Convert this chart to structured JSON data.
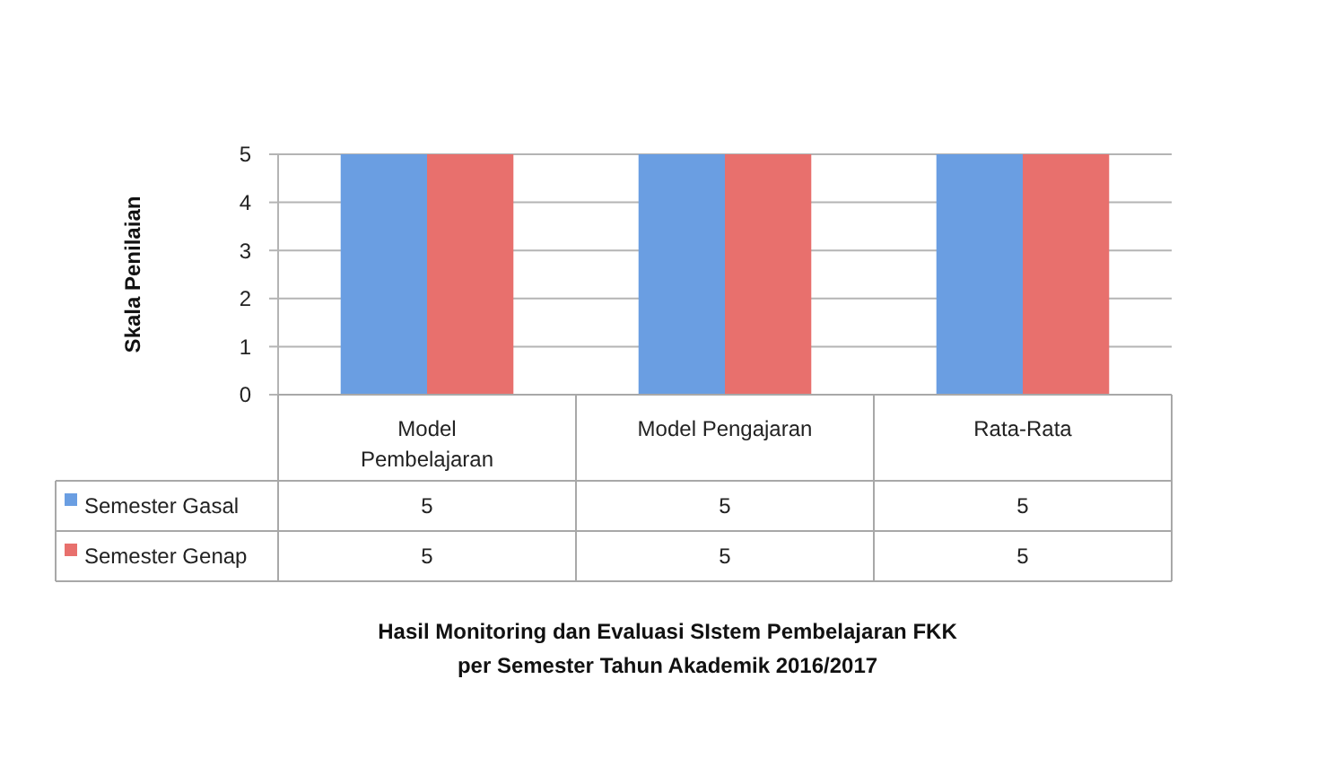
{
  "chart_data": {
    "type": "bar",
    "title": "Hasil Monitoring dan Evaluasi SIstem Pembelajaran FKK",
    "subtitle": "per Semester Tahun Akademik 2016/2017",
    "ylabel": "Skala Penilaian",
    "categories": [
      "Model Pembelajaran",
      "Model Pengajaran",
      "Rata-Rata"
    ],
    "series": [
      {
        "name": "Semester Gasal",
        "color": "#6a9ee2",
        "values": [
          5,
          5,
          5
        ]
      },
      {
        "name": "Semester Genap",
        "color": "#e8706d",
        "values": [
          5,
          5,
          5
        ]
      }
    ],
    "ylim": [
      0,
      5
    ],
    "yticks": [
      0,
      1,
      2,
      3,
      4,
      5
    ],
    "grid": "y",
    "legend": "bottom",
    "data_labels": true
  }
}
